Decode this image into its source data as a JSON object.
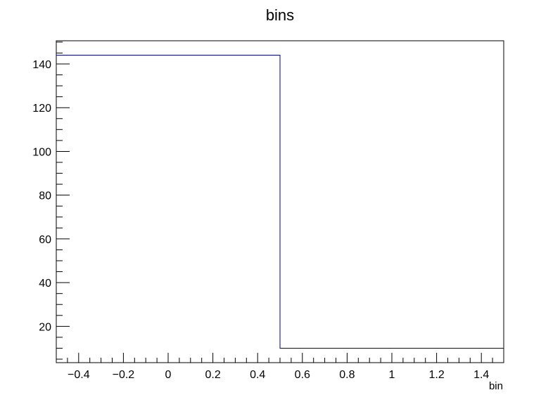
{
  "chart_data": {
    "type": "bar",
    "style": "step-histogram",
    "title": "bins",
    "xlabel": "bin",
    "ylabel": "",
    "xlim": [
      -0.5,
      1.5
    ],
    "ylim": [
      3.4,
      150.6
    ],
    "bin_edges": [
      -0.5,
      0.5,
      1.5
    ],
    "values": [
      144,
      10
    ],
    "x_ticks": [
      -0.4,
      -0.2,
      0,
      0.2,
      0.4,
      0.6,
      0.8,
      1,
      1.2,
      1.4
    ],
    "x_tick_labels": [
      "−0.4",
      "−0.2",
      "0",
      "0.2",
      "0.4",
      "0.6",
      "0.8",
      "1",
      "1.2",
      "1.4"
    ],
    "y_ticks": [
      20,
      40,
      60,
      80,
      100,
      120,
      140
    ],
    "y_tick_labels": [
      "20",
      "40",
      "60",
      "80",
      "100",
      "120",
      "140"
    ],
    "grid": false,
    "line_color": "#000080"
  }
}
